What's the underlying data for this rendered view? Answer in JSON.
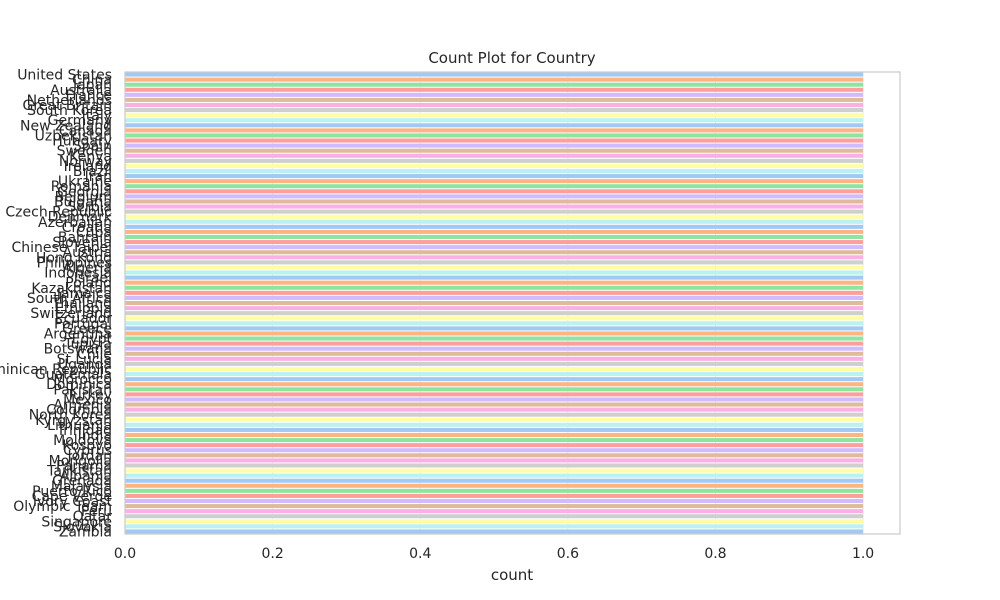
{
  "chart_data": {
    "type": "bar",
    "orientation": "horizontal",
    "title": "Count Plot for Country",
    "xlabel": "count",
    "ylabel": "",
    "xlim": [
      0,
      1.05
    ],
    "xticks": [
      "0.0",
      "0.2",
      "0.4",
      "0.6",
      "0.8",
      "1.0"
    ],
    "grid": true,
    "legend": "none",
    "categories": [
      "United States",
      "China",
      "Japan",
      "Australia",
      "France",
      "Netherlands",
      "Great Britain",
      "South Korea",
      "Italy",
      "Germany",
      "New Zealand",
      "Canada",
      "Uzbekistan",
      "Hungary",
      "Spain",
      "Sweden",
      "Kenya",
      "Norway",
      "Ireland",
      "Brazil",
      "Iran",
      "Ukraine",
      "Romania",
      "Georgia",
      "Belgium",
      "Bulgaria",
      "Serbia",
      "Czech Republic",
      "Denmark",
      "Azerbaijan",
      "Croatia",
      "Cuba",
      "Bahrain",
      "Slovenia",
      "Chinese Taipei",
      "Austria",
      "Hong Kong",
      "Philippines",
      "Algeria",
      "Indonesia",
      "Israel",
      "Poland",
      "Kazakhstan",
      "Jamaica",
      "South Africa",
      "Thailand",
      "Ethiopia",
      "Switzerland",
      "Ecuador",
      "Portugal",
      "Greece",
      "Argentina",
      "Egypt",
      "Tunisia",
      "Botswana",
      "Chile",
      "St Lucia",
      "Uganda",
      "Dominican Republic",
      "Guatemala",
      "Morocco",
      "Dominica",
      "Pakistan",
      "Turkey",
      "Mexico",
      "Armenia",
      "Colombia",
      "North Korea",
      "Kyrgyzstan",
      "Lithuania",
      "Trinidad",
      "India",
      "Moldova",
      "Kosovo",
      "Cyprus",
      "Jordan",
      "Mongolia",
      "Panama",
      "Tajikistan",
      "Albania",
      "Grenada",
      "Malaysia",
      "Puerto Rico",
      "Cape Verde",
      "Ivory Coast",
      "Olympic Team",
      "Peru",
      "Qatar",
      "Singapore",
      "Slovakia",
      "Zambia"
    ],
    "values": [
      1,
      1,
      1,
      1,
      1,
      1,
      1,
      1,
      1,
      1,
      1,
      1,
      1,
      1,
      1,
      1,
      1,
      1,
      1,
      1,
      1,
      1,
      1,
      1,
      1,
      1,
      1,
      1,
      1,
      1,
      1,
      1,
      1,
      1,
      1,
      1,
      1,
      1,
      1,
      1,
      1,
      1,
      1,
      1,
      1,
      1,
      1,
      1,
      1,
      1,
      1,
      1,
      1,
      1,
      1,
      1,
      1,
      1,
      1,
      1,
      1,
      1,
      1,
      1,
      1,
      1,
      1,
      1,
      1,
      1,
      1,
      1,
      1,
      1,
      1,
      1,
      1,
      1,
      1,
      1,
      1,
      1,
      1,
      1,
      1,
      1,
      1,
      1,
      1,
      1,
      1
    ],
    "palette": [
      "#a1c9f4",
      "#ffb482",
      "#8de5a1",
      "#ff9f9b",
      "#d0bbff",
      "#debb9b",
      "#fab0e4",
      "#cfcfcf",
      "#fffea3",
      "#b9f2f0"
    ]
  }
}
